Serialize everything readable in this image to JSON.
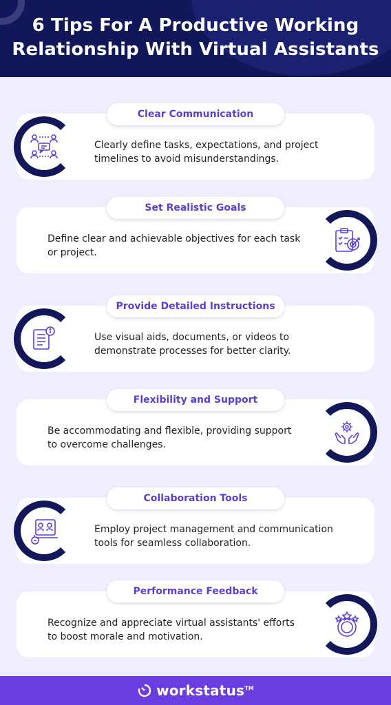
{
  "header": {
    "title_line1": "6 Tips For A Productive Working",
    "title_line2": "Relationship With Virtual Assistants"
  },
  "tips": [
    {
      "title": "Clear Communication",
      "text": "Clearly define tasks, expectations, and project timelines to avoid misunderstandings.",
      "icon": "communication-icon"
    },
    {
      "title": "Set Realistic Goals",
      "text": "Define clear and achievable objectives for each task or project.",
      "icon": "goal-target-icon"
    },
    {
      "title": "Provide Detailed Instructions",
      "text": "Use visual aids, documents, or videos to demonstrate processes for better clarity.",
      "icon": "instructions-document-icon"
    },
    {
      "title": "Flexibility and Support",
      "text": "Be accommodating and flexible, providing support to overcome challenges.",
      "icon": "support-hands-gear-icon"
    },
    {
      "title": "Collaboration Tools",
      "text": "Employ project management and communication tools for seamless collaboration.",
      "icon": "collaboration-tools-icon"
    },
    {
      "title": "Performance Feedback",
      "text": "Recognize and appreciate virtual assistants' efforts to boost morale and motivation.",
      "icon": "feedback-stars-icon"
    }
  ],
  "footer": {
    "brand": "workstatus",
    "trademark": "TM"
  },
  "colors": {
    "navy": "#12175a",
    "purple": "#6a3ddf",
    "title_purple": "#5d3ed1",
    "panel": "#efeefe"
  }
}
